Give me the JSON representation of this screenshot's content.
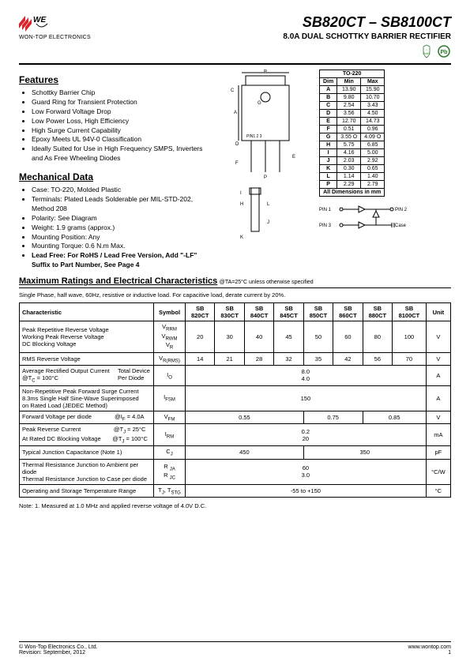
{
  "header": {
    "company": "WON-TOP ELECTRONICS",
    "part_title": "SB820CT – SB8100CT",
    "subtitle": "8.0A DUAL SCHOTTKY BARRIER RECTIFIER",
    "rohs": "RoHS",
    "pb": "Pb"
  },
  "features": {
    "title": "Features",
    "items": [
      "Schottky Barrier Chip",
      "Guard Ring for Transient Protection",
      "Low Forward Voltage Drop",
      "Low Power Loss, High Efficiency",
      "High Surge Current Capability",
      "Epoxy Meets UL 94V-0 Classification",
      "Ideally Suited for Use in High Frequency SMPS, Inverters and As Free Wheeling Diodes"
    ]
  },
  "mechanical": {
    "title": "Mechanical Data",
    "items": [
      "Case: TO-220, Molded Plastic",
      "Terminals: Plated Leads Solderable per MIL-STD-202, Method 208",
      "Polarity: See Diagram",
      "Weight: 1.9 grams (approx.)",
      "Mounting Position: Any",
      "Mounting Torque: 0.6 N.m Max."
    ],
    "leadfree": "Lead Free: For RoHS / Lead Free Version, Add \"-LF\" Suffix to Part Number, See Page 4"
  },
  "dimensions": {
    "title": "TO-220",
    "header": [
      "Dim",
      "Min",
      "Max"
    ],
    "rows": [
      [
        "A",
        "13.90",
        "15.90"
      ],
      [
        "B",
        "9.80",
        "10.70"
      ],
      [
        "C",
        "2.54",
        "3.43"
      ],
      [
        "D",
        "3.56",
        "4.50"
      ],
      [
        "E",
        "12.70",
        "14.73"
      ],
      [
        "F",
        "0.51",
        "0.96"
      ],
      [
        "G",
        "3.55 O",
        "4.09 O"
      ],
      [
        "H",
        "5.75",
        "6.85"
      ],
      [
        "I",
        "4.16",
        "5.00"
      ],
      [
        "J",
        "2.03",
        "2.92"
      ],
      [
        "K",
        "0.30",
        "0.65"
      ],
      [
        "L",
        "1.14",
        "1.40"
      ],
      [
        "P",
        "2.29",
        "2.79"
      ]
    ],
    "footer": "All Dimensions in mm"
  },
  "pins": {
    "pin1": "PIN 1",
    "pin2": "PIN 2",
    "pin3": "PIN 3",
    "case": "Case"
  },
  "ratings": {
    "title": "Maximum Ratings and Electrical Characteristics",
    "condition": " @TA=25°C unless otherwise specified",
    "note_line": "Single Phase, half wave, 60Hz, resistive or inductive load. For capacitive load, derate current by 20%.",
    "header": {
      "char": "Characteristic",
      "symbol": "Symbol",
      "parts": [
        "SB 820CT",
        "SB 830CT",
        "SB 840CT",
        "SB 845CT",
        "SB 850CT",
        "SB 860CT",
        "SB 880CT",
        "SB 8100CT"
      ],
      "unit": "Unit"
    },
    "rows": [
      {
        "char": "Peak Repetitive Reverse Voltage<br>Working Peak Reverse Voltage<br>DC Blocking Voltage",
        "symbol": "V<span class='sub'>RRM</span><br>V<span class='sub'>RWM</span><br>V<span class='sub'>R</span>",
        "values": [
          "20",
          "30",
          "40",
          "45",
          "50",
          "60",
          "80",
          "100"
        ],
        "unit": "V"
      },
      {
        "char": "RMS Reverse Voltage",
        "symbol": "V<span class='sub'>R(RMS)</span>",
        "values": [
          "14",
          "21",
          "28",
          "32",
          "35",
          "42",
          "56",
          "70"
        ],
        "unit": "V"
      },
      {
        "char": "Average Rectified Output Current &nbsp;&nbsp;&nbsp; Total Device<br>@T<span class='sub'>C</span> = 100°C &nbsp;&nbsp;&nbsp;&nbsp;&nbsp;&nbsp;&nbsp;&nbsp;&nbsp;&nbsp;&nbsp;&nbsp;&nbsp;&nbsp;&nbsp;&nbsp;&nbsp;&nbsp;&nbsp;&nbsp;&nbsp;&nbsp;&nbsp;&nbsp;&nbsp;&nbsp;&nbsp;&nbsp;&nbsp;&nbsp;&nbsp;&nbsp;&nbsp;&nbsp; Per Diode",
        "symbol": "I<span class='sub'>O</span>",
        "span_all": "8.0<br>4.0",
        "unit": "A"
      },
      {
        "char": "Non-Repetitive Peak Forward Surge Current<br>8.3ms Single Half Sine-Wave Superimposed<br>on Rated Load (JEDEC Method)",
        "symbol": "I<span class='sub'>FSM</span>",
        "span_all": "150",
        "unit": "A"
      },
      {
        "char": "Forward Voltage per diode &nbsp;&nbsp;&nbsp;&nbsp;&nbsp;&nbsp;&nbsp;&nbsp;&nbsp;&nbsp;&nbsp;&nbsp; @I<span class='sub'>F</span> = 4.0A",
        "symbol": "V<span class='sub'>FM</span>",
        "groups": [
          {
            "span": 4,
            "val": "0.55"
          },
          {
            "span": 2,
            "val": "0.75"
          },
          {
            "span": 2,
            "val": "0.85"
          }
        ],
        "unit": "V"
      },
      {
        "char": "Peak Reverse Current &nbsp;&nbsp;&nbsp;&nbsp;&nbsp;&nbsp;&nbsp;&nbsp;&nbsp;&nbsp;&nbsp;&nbsp;&nbsp;&nbsp;&nbsp;&nbsp;&nbsp;&nbsp; @T<span class='sub'>J</span> = 25°C<br>At Rated DC Blocking Voltage &nbsp;&nbsp;&nbsp;&nbsp;&nbsp; @T<span class='sub'>J</span> = 100°C",
        "symbol": "I<span class='sub'>RM</span>",
        "span_all": "0.2<br>20",
        "unit": "mA"
      },
      {
        "char": "Typical Junction Capacitance (Note 1)",
        "symbol": "C<span class='sub'>J</span>",
        "groups": [
          {
            "span": 4,
            "val": "450"
          },
          {
            "span": 4,
            "val": "350"
          }
        ],
        "unit": "pF"
      },
      {
        "char": "Thermal Resistance Junction to Ambient per diode<br>Thermal Resistance Junction to Case per diode",
        "symbol": "R <span class='sub'>JA</span><br>R <span class='sub'>JC</span>",
        "span_all": "60<br>3.0",
        "unit": "°C/W"
      },
      {
        "char": "Operating and Storage Temperature Range",
        "symbol": "T<span class='sub'>J</span>, T<span class='sub'>STG</span>",
        "span_all": "-55 to +150",
        "unit": "°C"
      }
    ]
  },
  "footnote": "Note:  1. Measured at 1.0 MHz and applied reverse voltage of 4.0V D.C.",
  "footer": {
    "copyright": "© Won-Top Electronics Co., Ltd.",
    "revision": "Revision: September, 2012",
    "url": "www.wontop.com",
    "page": "1"
  },
  "colors": {
    "logo_red": "#d8232a",
    "rohs_green": "#2a7a2a",
    "pb_green": "#2a7a2a"
  }
}
